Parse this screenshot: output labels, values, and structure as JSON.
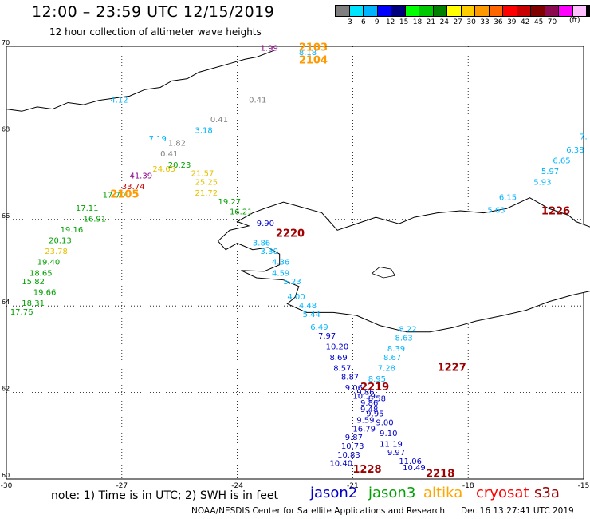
{
  "header": {
    "title": "12:00 – 23:59 UTC 12/15/2019",
    "subtitle": "12 hour collection of altimeter wave heights"
  },
  "colorbar": {
    "unit": "(ft)",
    "colors": [
      "#7f7f7f",
      "#00e5ff",
      "#00b4ff",
      "#0000ff",
      "#00007f",
      "#00ff00",
      "#00c800",
      "#008000",
      "#ffff00",
      "#ffcc00",
      "#ff9900",
      "#ff6600",
      "#ff0000",
      "#c80000",
      "#800000",
      "#8b0a50",
      "#ff00ff",
      "#ffc0ff",
      "#000000"
    ],
    "labels": [
      "3",
      "6",
      "9",
      "12",
      "15",
      "18",
      "21",
      "24",
      "27",
      "30",
      "33",
      "36",
      "39",
      "42",
      "45",
      "70"
    ]
  },
  "axes": {
    "x_ticks": [
      "-30",
      "-27",
      "-24",
      "-21",
      "-18",
      "-15"
    ],
    "y_ticks": [
      "70",
      "68",
      "66",
      "64",
      "62",
      "60"
    ]
  },
  "satellite_colors": {
    "jason2": "#0000c8",
    "jason3": "#00a000",
    "altika": "#ffa500",
    "cryosat": "#ff0000",
    "s3a": "#a00000"
  },
  "observations": [
    {
      "lon": -23.4,
      "lat": 69.9,
      "value": "1.99",
      "color": "#8b008b"
    },
    {
      "lon": -22.4,
      "lat": 69.8,
      "value": "8.18",
      "color": "#00b4ff"
    },
    {
      "lon": -27.3,
      "lat": 68.7,
      "value": "4.12",
      "color": "#00b4ff"
    },
    {
      "lon": -23.7,
      "lat": 68.7,
      "value": "0.41",
      "color": "#7f7f7f"
    },
    {
      "lon": -24.7,
      "lat": 68.25,
      "value": "0.41",
      "color": "#7f7f7f"
    },
    {
      "lon": -25.1,
      "lat": 68.0,
      "value": "3.18",
      "color": "#00b4ff"
    },
    {
      "lon": -26.3,
      "lat": 67.8,
      "value": "7.19",
      "color": "#00b4ff"
    },
    {
      "lon": -25.8,
      "lat": 67.7,
      "value": "1.82",
      "color": "#7f7f7f"
    },
    {
      "lon": -26.0,
      "lat": 67.45,
      "value": "0.41",
      "color": "#7f7f7f"
    },
    {
      "lon": -25.8,
      "lat": 67.2,
      "value": "20.23",
      "color": "#00a000"
    },
    {
      "lon": -26.2,
      "lat": 67.1,
      "value": "24.65",
      "color": "#e6c000"
    },
    {
      "lon": -25.2,
      "lat": 67.0,
      "value": "21.57",
      "color": "#e6c000"
    },
    {
      "lon": -26.8,
      "lat": 66.95,
      "value": "41.39",
      "color": "#8b008b"
    },
    {
      "lon": -25.1,
      "lat": 66.8,
      "value": "25.25",
      "color": "#e6c000"
    },
    {
      "lon": -27.0,
      "lat": 66.7,
      "value": "33.74",
      "color": "#c80000"
    },
    {
      "lon": -25.1,
      "lat": 66.55,
      "value": "21.72",
      "color": "#e6c000"
    },
    {
      "lon": -27.5,
      "lat": 66.5,
      "value": "17.70",
      "color": "#00a000"
    },
    {
      "lon": -24.5,
      "lat": 66.35,
      "value": "19.27",
      "color": "#00a000"
    },
    {
      "lon": -28.2,
      "lat": 66.2,
      "value": "17.11",
      "color": "#00a000"
    },
    {
      "lon": -24.2,
      "lat": 66.12,
      "value": "16.21",
      "color": "#00a000"
    },
    {
      "lon": -28.0,
      "lat": 65.95,
      "value": "16.91",
      "color": "#00a000"
    },
    {
      "lon": -23.5,
      "lat": 65.85,
      "value": "9.90",
      "color": "#0000c8"
    },
    {
      "lon": -28.6,
      "lat": 65.7,
      "value": "19.16",
      "color": "#00a000"
    },
    {
      "lon": -28.9,
      "lat": 65.45,
      "value": "20.13",
      "color": "#00a000"
    },
    {
      "lon": -23.6,
      "lat": 65.4,
      "value": "3.86",
      "color": "#00b4ff"
    },
    {
      "lon": -29.0,
      "lat": 65.2,
      "value": "23.78",
      "color": "#e6c000"
    },
    {
      "lon": -23.4,
      "lat": 65.2,
      "value": "3.30",
      "color": "#00b4ff"
    },
    {
      "lon": -29.2,
      "lat": 64.95,
      "value": "19.40",
      "color": "#00a000"
    },
    {
      "lon": -23.1,
      "lat": 64.95,
      "value": "4.36",
      "color": "#00b4ff"
    },
    {
      "lon": -29.4,
      "lat": 64.7,
      "value": "18.65",
      "color": "#00a000"
    },
    {
      "lon": -23.1,
      "lat": 64.7,
      "value": "4.59",
      "color": "#00b4ff"
    },
    {
      "lon": -29.6,
      "lat": 64.5,
      "value": "15.82",
      "color": "#00a000"
    },
    {
      "lon": -22.8,
      "lat": 64.5,
      "value": "5.23",
      "color": "#00b4ff"
    },
    {
      "lon": -29.3,
      "lat": 64.25,
      "value": "19.66",
      "color": "#00a000"
    },
    {
      "lon": -22.7,
      "lat": 64.15,
      "value": "4.00",
      "color": "#00b4ff"
    },
    {
      "lon": -29.6,
      "lat": 64.0,
      "value": "18.31",
      "color": "#00a000"
    },
    {
      "lon": -22.4,
      "lat": 63.95,
      "value": "4.48",
      "color": "#00b4ff"
    },
    {
      "lon": -29.9,
      "lat": 63.8,
      "value": "17.76",
      "color": "#00a000"
    },
    {
      "lon": -22.3,
      "lat": 63.75,
      "value": "5.44",
      "color": "#00b4ff"
    },
    {
      "lon": -19.8,
      "lat": 63.4,
      "value": "8.22",
      "color": "#00b4ff"
    },
    {
      "lon": -22.1,
      "lat": 63.45,
      "value": "6.49",
      "color": "#00b4ff"
    },
    {
      "lon": -19.9,
      "lat": 63.2,
      "value": "8.63",
      "color": "#00b4ff"
    },
    {
      "lon": -21.9,
      "lat": 63.25,
      "value": "7.97",
      "color": "#0000c8"
    },
    {
      "lon": -20.1,
      "lat": 62.95,
      "value": "8.39",
      "color": "#00b4ff"
    },
    {
      "lon": -21.7,
      "lat": 63.0,
      "value": "10.20",
      "color": "#0000c8"
    },
    {
      "lon": -20.2,
      "lat": 62.75,
      "value": "8.67",
      "color": "#00b4ff"
    },
    {
      "lon": -21.6,
      "lat": 62.75,
      "value": "8.69",
      "color": "#0000c8"
    },
    {
      "lon": -20.35,
      "lat": 62.5,
      "value": "7.28",
      "color": "#00b4ff"
    },
    {
      "lon": -21.5,
      "lat": 62.5,
      "value": "8.57",
      "color": "#0000c8"
    },
    {
      "lon": -21.3,
      "lat": 62.3,
      "value": "8.87",
      "color": "#0000c8"
    },
    {
      "lon": -20.6,
      "lat": 62.25,
      "value": "8.95",
      "color": "#00b4ff"
    },
    {
      "lon": -21.2,
      "lat": 62.05,
      "value": "9.06",
      "color": "#0000c8"
    },
    {
      "lon": -21.0,
      "lat": 61.85,
      "value": "10.19",
      "color": "#0000c8"
    },
    {
      "lon": -20.9,
      "lat": 61.95,
      "value": "9.86",
      "color": "#0000c8"
    },
    {
      "lon": -20.6,
      "lat": 61.8,
      "value": "8.58",
      "color": "#0000c8"
    },
    {
      "lon": -20.8,
      "lat": 61.7,
      "value": "9.86",
      "color": "#0000c8"
    },
    {
      "lon": -20.8,
      "lat": 61.55,
      "value": "9.48",
      "color": "#0000c8"
    },
    {
      "lon": -20.65,
      "lat": 61.45,
      "value": "9.95",
      "color": "#0000c8"
    },
    {
      "lon": -20.9,
      "lat": 61.3,
      "value": "9.59",
      "color": "#0000c8"
    },
    {
      "lon": -20.4,
      "lat": 61.25,
      "value": "9.00",
      "color": "#0000c8"
    },
    {
      "lon": -21.0,
      "lat": 61.1,
      "value": "16.79",
      "color": "#0000c8"
    },
    {
      "lon": -20.3,
      "lat": 61.0,
      "value": "9.10",
      "color": "#0000c8"
    },
    {
      "lon": -21.2,
      "lat": 60.9,
      "value": "9.87",
      "color": "#0000c8"
    },
    {
      "lon": -20.3,
      "lat": 60.75,
      "value": "11.19",
      "color": "#0000c8"
    },
    {
      "lon": -21.3,
      "lat": 60.7,
      "value": "10.73",
      "color": "#0000c8"
    },
    {
      "lon": -20.1,
      "lat": 60.55,
      "value": "9.97",
      "color": "#0000c8"
    },
    {
      "lon": -21.4,
      "lat": 60.5,
      "value": "10.83",
      "color": "#0000c8"
    },
    {
      "lon": -19.8,
      "lat": 60.35,
      "value": "11.06",
      "color": "#0000c8"
    },
    {
      "lon": -21.6,
      "lat": 60.3,
      "value": "10.40",
      "color": "#0000c8"
    },
    {
      "lon": -19.7,
      "lat": 60.2,
      "value": "10.49",
      "color": "#0000c8"
    },
    {
      "lon": -15.1,
      "lat": 67.85,
      "value": "7.",
      "color": "#00b4ff"
    },
    {
      "lon": -15.45,
      "lat": 67.55,
      "value": "6.38",
      "color": "#00b4ff"
    },
    {
      "lon": -15.8,
      "lat": 67.3,
      "value": "6.65",
      "color": "#00b4ff"
    },
    {
      "lon": -16.1,
      "lat": 67.05,
      "value": "5.97",
      "color": "#00b4ff"
    },
    {
      "lon": -16.3,
      "lat": 66.8,
      "value": "5.93",
      "color": "#00b4ff"
    },
    {
      "lon": -17.2,
      "lat": 66.45,
      "value": "6.15",
      "color": "#00b4ff"
    },
    {
      "lon": -17.5,
      "lat": 66.15,
      "value": "5.63",
      "color": "#00b4ff"
    }
  ],
  "track_ids": [
    {
      "lon": -22.4,
      "lat": 69.9,
      "id": "2103",
      "color": "#ff9900"
    },
    {
      "lon": -22.4,
      "lat": 69.6,
      "id": "2104",
      "color": "#ff9900"
    },
    {
      "lon": -27.3,
      "lat": 66.5,
      "id": "2105",
      "color": "#ff9900"
    },
    {
      "lon": -23.0,
      "lat": 65.6,
      "id": "2220",
      "color": "#a00000"
    },
    {
      "lon": -16.1,
      "lat": 66.12,
      "id": "1226",
      "color": "#a00000"
    },
    {
      "lon": -18.8,
      "lat": 62.5,
      "id": "1227",
      "color": "#a00000"
    },
    {
      "lon": -20.8,
      "lat": 62.05,
      "id": "2219",
      "color": "#a00000"
    },
    {
      "lon": -21.0,
      "lat": 60.15,
      "id": "1228",
      "color": "#a00000"
    },
    {
      "lon": -19.1,
      "lat": 60.05,
      "id": "2218",
      "color": "#a00000"
    }
  ],
  "footer": {
    "note": "note:  1) Time is in UTC;  2) SWH is in feet",
    "satellites": [
      {
        "name": "jason2",
        "color": "#0000c8"
      },
      {
        "name": "jason3",
        "color": "#00a000"
      },
      {
        "name": "altika",
        "color": "#ffa500"
      },
      {
        "name": "cryosat",
        "color": "#ff0000"
      },
      {
        "name": "s3a",
        "color": "#a00000"
      }
    ],
    "credit": "NOAA/NESDIS Center for Satellite Applications and Research",
    "timestamp": "Dec 16 13:27:41 UTC 2019"
  }
}
